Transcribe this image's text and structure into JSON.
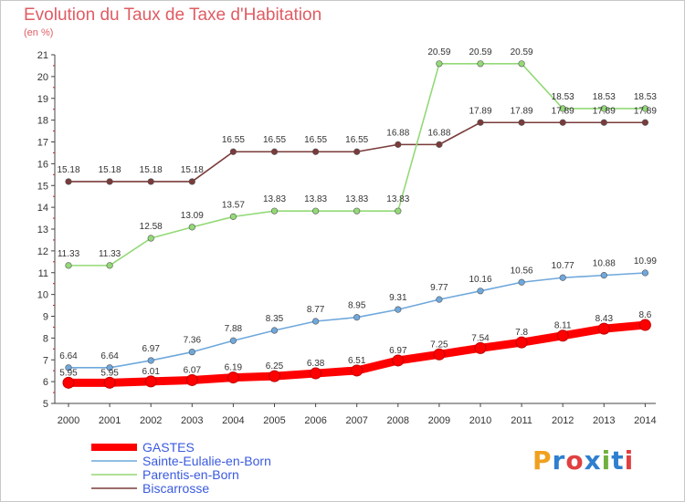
{
  "chart_data": {
    "type": "line",
    "title": "Evolution du Taux de Taxe d'Habitation",
    "subtitle": "(en %)",
    "x": [
      "2000",
      "2001",
      "2002",
      "2003",
      "2004",
      "2005",
      "2006",
      "2007",
      "2008",
      "2009",
      "2010",
      "2011",
      "2012",
      "2013",
      "2014"
    ],
    "ylim": [
      5,
      21
    ],
    "yticks": [
      5,
      6,
      7,
      8,
      9,
      10,
      11,
      12,
      13,
      14,
      15,
      16,
      17,
      18,
      19,
      20,
      21
    ],
    "grid": false,
    "legend_position": "bottom-left",
    "series": [
      {
        "name": "GASTES",
        "color": "#ff0000",
        "values": [
          5.95,
          5.95,
          6.01,
          6.07,
          6.19,
          6.25,
          6.38,
          6.51,
          6.97,
          7.25,
          7.54,
          7.8,
          8.11,
          8.43,
          8.6
        ],
        "labels": [
          "5.95",
          "5.95",
          "6.01",
          "6.07",
          "6.19",
          "6.25",
          "6.38",
          "6.51",
          "6.97",
          "7.25",
          "7.54",
          "7.8",
          "8.11",
          "8.43",
          "8.6"
        ]
      },
      {
        "name": "Sainte-Eulalie-en-Born",
        "color": "#6fa8dc",
        "values": [
          6.64,
          6.64,
          6.97,
          7.36,
          7.88,
          8.35,
          8.77,
          8.95,
          9.31,
          9.77,
          10.16,
          10.56,
          10.77,
          10.88,
          10.99
        ],
        "labels": [
          "6.64",
          "6.64",
          "6.97",
          "7.36",
          "7.88",
          "8.35",
          "8.77",
          "8.95",
          "9.31",
          "9.77",
          "10.16",
          "10.56",
          "10.77",
          "10.88",
          "10.99"
        ]
      },
      {
        "name": "Parentis-en-Born",
        "color": "#93d977",
        "values": [
          11.33,
          11.33,
          12.58,
          13.09,
          13.57,
          13.83,
          13.83,
          13.83,
          13.83,
          20.59,
          20.59,
          20.59,
          18.53,
          18.53,
          18.53
        ],
        "labels": [
          "11.33",
          "11.33",
          "12.58",
          "13.09",
          "13.57",
          "13.83",
          "13.83",
          "13.83",
          "13.83",
          "20.59",
          "20.59",
          "20.59",
          "18.53",
          "18.53",
          "18.53"
        ]
      },
      {
        "name": "Biscarrosse",
        "color": "#7a3b3b",
        "values": [
          15.18,
          15.18,
          15.18,
          15.18,
          16.55,
          16.55,
          16.55,
          16.55,
          16.88,
          16.88,
          17.89,
          17.89,
          17.89,
          17.89,
          17.89
        ],
        "labels": [
          "15.18",
          "15.18",
          "15.18",
          "15.18",
          "16.55",
          "16.55",
          "16.55",
          "16.55",
          "16.88",
          "16.88",
          "17.89",
          "17.89",
          "17.89",
          "17.89",
          "17.89"
        ]
      }
    ]
  },
  "logo": {
    "letters": [
      "P",
      "r",
      "o",
      "x",
      "i",
      "t",
      "i"
    ],
    "colors": [
      "#f0a020",
      "#2f7fd0",
      "#e04040",
      "#2f7fd0",
      "#70b040",
      "#2f7fd0",
      "#e04040"
    ]
  }
}
